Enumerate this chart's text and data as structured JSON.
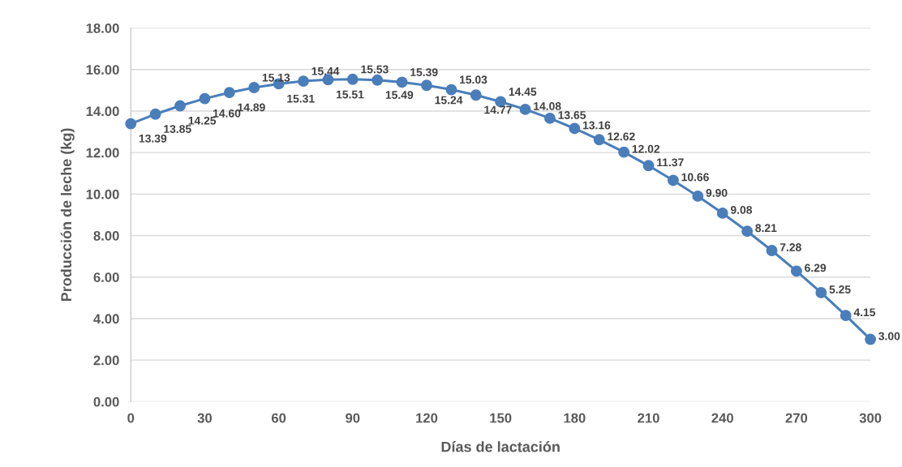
{
  "chart_data": {
    "type": "line",
    "xlabel": "Días de lactación",
    "ylabel": "Producción de leche (kg)",
    "x": [
      0,
      10,
      20,
      30,
      40,
      50,
      60,
      70,
      80,
      90,
      100,
      110,
      120,
      130,
      140,
      150,
      160,
      170,
      180,
      190,
      200,
      210,
      220,
      230,
      240,
      250,
      260,
      270,
      280,
      290,
      300
    ],
    "series": [
      {
        "color": "#4a7ebb",
        "values": [
          13.39,
          13.85,
          14.25,
          14.6,
          14.89,
          15.13,
          15.31,
          15.44,
          15.51,
          15.53,
          15.49,
          15.39,
          15.24,
          15.03,
          14.77,
          14.45,
          14.08,
          13.65,
          13.16,
          12.62,
          12.02,
          11.37,
          10.66,
          9.9,
          9.08,
          8.21,
          7.28,
          6.29,
          5.25,
          4.15,
          3.0
        ],
        "value_labels": [
          "13.39",
          "13.85",
          "14.25",
          "14.60",
          "14.89",
          "15.13",
          "15.31",
          "15.44",
          "15.51",
          "15.53",
          "15.49",
          "15.39",
          "15.24",
          "15.03",
          "14.77",
          "14.45",
          "14.08",
          "13.65",
          "13.16",
          "12.62",
          "12.02",
          "11.37",
          "10.66",
          "9.90",
          "9.08",
          "8.21",
          "7.28",
          "6.29",
          "5.25",
          "4.15",
          "3.00"
        ]
      }
    ],
    "xlim": [
      0,
      300
    ],
    "xticks": [
      0,
      30,
      60,
      90,
      120,
      150,
      180,
      210,
      240,
      270,
      300
    ],
    "ylim": [
      0,
      18
    ],
    "yticks": [
      {
        "value": 0,
        "label": "0.00"
      },
      {
        "value": 2,
        "label": "2.00"
      },
      {
        "value": 4,
        "label": "4.00"
      },
      {
        "value": 6,
        "label": "6.00"
      },
      {
        "value": 8,
        "label": "8.00"
      },
      {
        "value": 10,
        "label": "10.00"
      },
      {
        "value": 12,
        "label": "12.00"
      },
      {
        "value": 14,
        "label": "14.00"
      },
      {
        "value": 16,
        "label": "16.00"
      },
      {
        "value": 18,
        "label": "18.00"
      }
    ],
    "grid": "y",
    "marker": "circle",
    "line_style": "solid"
  }
}
